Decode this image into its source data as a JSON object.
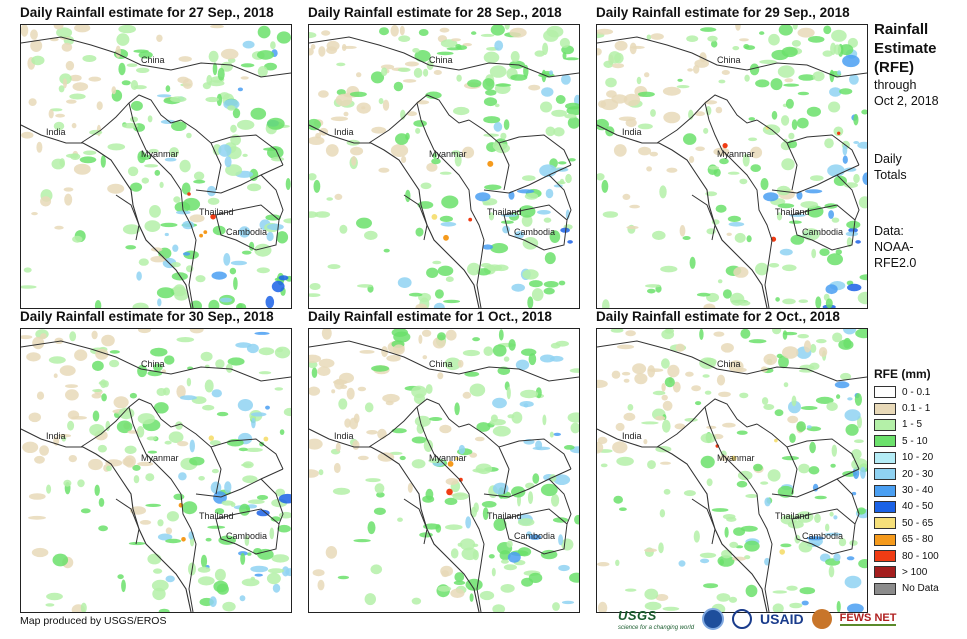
{
  "panels": [
    {
      "title": "Daily Rainfall estimate for 27 Sep., 2018"
    },
    {
      "title": "Daily Rainfall estimate for 28 Sep., 2018"
    },
    {
      "title": "Daily Rainfall estimate for 29 Sep., 2018"
    },
    {
      "title": "Daily Rainfall estimate for 30 Sep., 2018"
    },
    {
      "title": "Daily Rainfall estimate for 1 Oct., 2018"
    },
    {
      "title": "Daily Rainfall estimate for 2 Oct., 2018"
    }
  ],
  "map_labels": {
    "china": "China",
    "india": "India",
    "myanmar": "Myanmar",
    "thailand": "Thailand",
    "cambodia": "Cambodia"
  },
  "sidebar": {
    "title_line1": "Rainfall",
    "title_line2": "Estimate",
    "title_line3": "(RFE)",
    "through": "through",
    "date": "Oct 2, 2018",
    "daily": "Daily",
    "totals": "Totals",
    "data_label": "Data:",
    "source1": "NOAA-",
    "source2": "RFE2.0"
  },
  "legend": {
    "title": "RFE (mm)",
    "items": [
      {
        "label": "0 - 0.1",
        "color": "#ffffff"
      },
      {
        "label": "0.1 - 1",
        "color": "#e8d9b8"
      },
      {
        "label": "1 - 5",
        "color": "#b4f0a8"
      },
      {
        "label": "5 - 10",
        "color": "#6be06b"
      },
      {
        "label": "10 - 20",
        "color": "#b4ecf6"
      },
      {
        "label": "20 - 30",
        "color": "#8fd2f2"
      },
      {
        "label": "30 - 40",
        "color": "#4a9ff2"
      },
      {
        "label": "40 - 50",
        "color": "#1b62e6"
      },
      {
        "label": "50 - 65",
        "color": "#f6e07a"
      },
      {
        "label": "65 - 80",
        "color": "#f59a1c"
      },
      {
        "label": "80 - 100",
        "color": "#f03c14"
      },
      {
        "label": "> 100",
        "color": "#a41e1e"
      },
      {
        "label": "No Data",
        "color": "#8c8c8c"
      }
    ]
  },
  "footer": {
    "credit": "Map produced by USGS/EROS",
    "usgs": "USGS",
    "usgs_tag": "science for a changing world",
    "usaid": "USAID",
    "fews": "FEWS NET"
  }
}
